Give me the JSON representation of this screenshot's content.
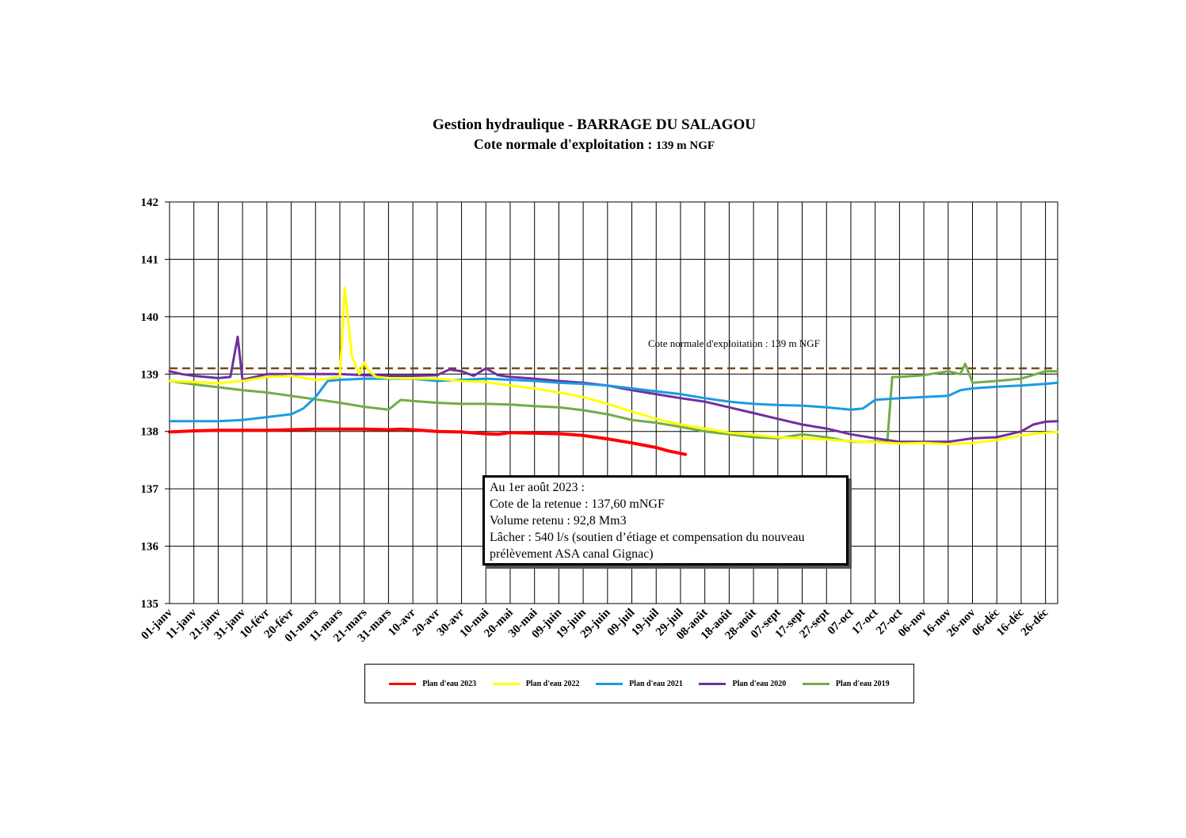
{
  "title": {
    "line1": "Gestion hydraulique - BARRAGE DU SALAGOU",
    "line2_main": "Cote normale d'exploitation :",
    "line2_small": "139 m NGF"
  },
  "reference_line": {
    "label": "Cote normale d'exploitation : 139 m NGF",
    "value": 139.1,
    "color": "#7a4a12"
  },
  "info_box": {
    "line1": "Au 1er août 2023 :",
    "line2": "Cote de la retenue : 137,60 mNGF",
    "line3": "Volume retenu : 92,8 Mm3",
    "line4": "Lâcher : 540 l/s (soutien d’étiage et compensation du nouveau",
    "line5": "prélèvement ASA canal Gignac)"
  },
  "chart_data": {
    "type": "line",
    "ylim": [
      135,
      142
    ],
    "xlim": [
      0,
      365
    ],
    "grid": true,
    "legend_placement": "bottom",
    "y_ticks": [
      "135",
      "136",
      "137",
      "138",
      "139",
      "140",
      "141",
      "142"
    ],
    "x_ticks": [
      "01-janv",
      "11-janv",
      "21-janv",
      "31-janv",
      "10-févr",
      "20-févr",
      "01-mars",
      "11-mars",
      "21-mars",
      "31-mars",
      "10-avr",
      "20-avr",
      "30-avr",
      "10-mai",
      "20-mai",
      "30-mai",
      "09-juin",
      "19-juin",
      "29-juin",
      "09-juil",
      "19-juil",
      "29-juil",
      "08-août",
      "18-août",
      "28-août",
      "07-sept",
      "17-sept",
      "27-sept",
      "07-oct",
      "17-oct",
      "27-oct",
      "06-nov",
      "16-nov",
      "26-nov",
      "06-déc",
      "16-déc",
      "26-déc"
    ],
    "series": [
      {
        "name": "Plan d'eau 2023",
        "color": "#ff0000",
        "width": 4,
        "x": [
          0,
          10,
          20,
          30,
          40,
          50,
          60,
          70,
          80,
          90,
          95,
          100,
          110,
          120,
          130,
          135,
          140,
          150,
          160,
          170,
          180,
          190,
          200,
          205,
          212
        ],
        "y": [
          137.99,
          138.01,
          138.02,
          138.02,
          138.02,
          138.03,
          138.04,
          138.04,
          138.04,
          138.03,
          138.04,
          138.03,
          138.0,
          137.99,
          137.96,
          137.95,
          137.98,
          137.97,
          137.96,
          137.93,
          137.87,
          137.8,
          137.72,
          137.66,
          137.6
        ]
      },
      {
        "name": "Plan d'eau 2022",
        "color": "#ffff00",
        "width": 3,
        "x": [
          0,
          10,
          20,
          25,
          30,
          40,
          50,
          60,
          65,
          70,
          72,
          75,
          78,
          80,
          82,
          85,
          90,
          110,
          120,
          130,
          140,
          150,
          160,
          170,
          180,
          190,
          200,
          210,
          220,
          230,
          240,
          250,
          260,
          270,
          280,
          290,
          300,
          310,
          320,
          330,
          340,
          350,
          360,
          365
        ],
        "y": [
          138.88,
          138.86,
          138.84,
          138.86,
          138.88,
          138.95,
          138.97,
          138.9,
          138.92,
          138.95,
          140.5,
          139.3,
          139.0,
          139.2,
          139.05,
          138.95,
          138.93,
          138.92,
          138.88,
          138.86,
          138.8,
          138.75,
          138.68,
          138.6,
          138.48,
          138.35,
          138.22,
          138.12,
          138.05,
          137.98,
          137.94,
          137.9,
          137.88,
          137.86,
          137.83,
          137.81,
          137.79,
          137.8,
          137.78,
          137.8,
          137.85,
          137.93,
          137.98,
          137.99
        ]
      },
      {
        "name": "Plan d'eau 2021",
        "color": "#1a9be0",
        "width": 3,
        "x": [
          0,
          10,
          20,
          30,
          40,
          50,
          55,
          60,
          65,
          70,
          80,
          90,
          100,
          110,
          120,
          130,
          140,
          150,
          160,
          170,
          180,
          190,
          200,
          210,
          220,
          230,
          240,
          250,
          260,
          270,
          280,
          285,
          290,
          300,
          310,
          320,
          325,
          330,
          340,
          350,
          360,
          365
        ],
        "y": [
          138.18,
          138.18,
          138.18,
          138.2,
          138.25,
          138.3,
          138.4,
          138.6,
          138.88,
          138.9,
          138.92,
          138.92,
          138.92,
          138.88,
          138.9,
          138.92,
          138.9,
          138.88,
          138.85,
          138.83,
          138.8,
          138.75,
          138.7,
          138.65,
          138.58,
          138.52,
          138.48,
          138.46,
          138.45,
          138.42,
          138.38,
          138.4,
          138.55,
          138.58,
          138.6,
          138.62,
          138.72,
          138.75,
          138.78,
          138.8,
          138.83,
          138.85
        ]
      },
      {
        "name": "Plan d'eau 2020",
        "color": "#7030a0",
        "width": 3,
        "x": [
          0,
          5,
          10,
          15,
          20,
          25,
          28,
          30,
          35,
          40,
          50,
          60,
          70,
          80,
          90,
          100,
          110,
          115,
          120,
          125,
          130,
          135,
          140,
          150,
          160,
          170,
          180,
          190,
          200,
          210,
          220,
          230,
          240,
          250,
          260,
          270,
          280,
          290,
          300,
          310,
          320,
          330,
          340,
          350,
          355,
          360,
          365
        ],
        "y": [
          139.05,
          139.0,
          138.97,
          138.95,
          138.93,
          138.95,
          139.65,
          138.9,
          138.95,
          139.0,
          139.0,
          139.0,
          139.0,
          138.98,
          138.97,
          138.97,
          138.98,
          139.08,
          139.05,
          138.97,
          139.1,
          138.98,
          138.95,
          138.92,
          138.88,
          138.85,
          138.8,
          138.72,
          138.65,
          138.58,
          138.52,
          138.42,
          138.32,
          138.22,
          138.12,
          138.05,
          137.95,
          137.88,
          137.82,
          137.82,
          137.82,
          137.88,
          137.9,
          138.0,
          138.12,
          138.17,
          138.18
        ]
      },
      {
        "name": "Plan d'eau 2019",
        "color": "#70ad47",
        "width": 3,
        "x": [
          0,
          10,
          20,
          30,
          40,
          50,
          60,
          70,
          80,
          90,
          95,
          100,
          110,
          120,
          130,
          140,
          150,
          160,
          170,
          180,
          190,
          200,
          210,
          220,
          230,
          240,
          250,
          260,
          270,
          280,
          290,
          295,
          297,
          300,
          310,
          320,
          325,
          327,
          330,
          340,
          350,
          360,
          365
        ],
        "y": [
          138.88,
          138.82,
          138.77,
          138.72,
          138.68,
          138.62,
          138.56,
          138.5,
          138.43,
          138.38,
          138.55,
          138.53,
          138.5,
          138.48,
          138.48,
          138.47,
          138.44,
          138.42,
          138.37,
          138.3,
          138.2,
          138.15,
          138.08,
          138.0,
          137.95,
          137.9,
          137.88,
          137.95,
          137.9,
          137.82,
          137.82,
          137.82,
          138.95,
          138.95,
          138.98,
          139.05,
          139.0,
          139.18,
          138.85,
          138.88,
          138.92,
          139.05,
          139.05
        ]
      }
    ]
  },
  "legend": {
    "items": [
      {
        "label": "Plan d'eau 2023",
        "color": "#ff0000"
      },
      {
        "label": "Plan d'eau 2022",
        "color": "#ffff00"
      },
      {
        "label": "Plan d'eau 2021",
        "color": "#1a9be0"
      },
      {
        "label": "Plan d'eau 2020",
        "color": "#7030a0"
      },
      {
        "label": "Plan d'eau 2019",
        "color": "#70ad47"
      }
    ]
  }
}
